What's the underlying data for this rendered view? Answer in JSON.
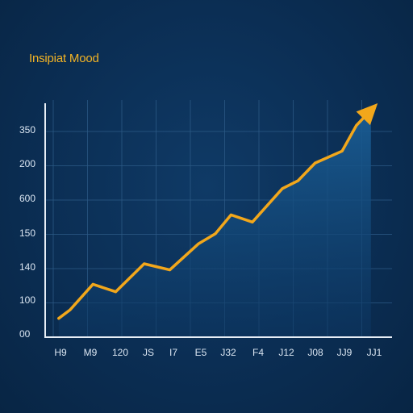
{
  "chart_data": {
    "type": "area",
    "title": "Insipiat Mood",
    "xlabel": "",
    "ylabel": "",
    "categories": [
      "H9",
      "M9",
      "120",
      "JS",
      "I7",
      "E5",
      "J32",
      "F4",
      "J12",
      "J08",
      "JJ9",
      "JJ1"
    ],
    "y_tick_labels": [
      "00",
      "100",
      "140",
      "150",
      "600",
      "200",
      "350"
    ],
    "y_tick_positions": [
      0,
      1,
      2,
      3,
      4,
      5,
      6
    ],
    "values": [
      {
        "x": 0.0,
        "y": 0.3
      },
      {
        "x": 0.4,
        "y": 0.55
      },
      {
        "x": 1.2,
        "y": 1.3
      },
      {
        "x": 2.0,
        "y": 1.08
      },
      {
        "x": 3.0,
        "y": 1.9
      },
      {
        "x": 3.9,
        "y": 1.72
      },
      {
        "x": 4.9,
        "y": 2.48
      },
      {
        "x": 5.5,
        "y": 2.78
      },
      {
        "x": 6.05,
        "y": 3.33
      },
      {
        "x": 6.8,
        "y": 3.12
      },
      {
        "x": 7.85,
        "y": 4.1
      },
      {
        "x": 8.4,
        "y": 4.33
      },
      {
        "x": 9.0,
        "y": 4.85
      },
      {
        "x": 9.95,
        "y": 5.2
      },
      {
        "x": 10.45,
        "y": 5.95
      },
      {
        "x": 11.2,
        "y": 6.6
      }
    ],
    "xlim": [
      -0.25,
      11.25
    ],
    "ylim": [
      -0.25,
      6.6
    ],
    "grid": true,
    "end_arrow": true,
    "colors": {
      "line": "#f2a71b",
      "fill_top": "#1a5d94",
      "fill_bottom": "#0c3560",
      "grid": "#2c5a86",
      "axis": "#e7eef6",
      "title": "#f2b325",
      "tick_label": "#dbe6f2"
    }
  }
}
